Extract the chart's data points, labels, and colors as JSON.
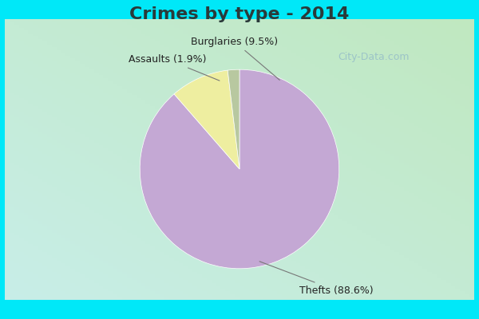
{
  "title": "Crimes by type - 2014",
  "slices": [
    {
      "label": "Thefts",
      "pct": 88.6,
      "color": "#C4A8D4"
    },
    {
      "label": "Burglaries",
      "pct": 9.5,
      "color": "#EEEEA0"
    },
    {
      "label": "Assaults",
      "pct": 1.9,
      "color": "#B8C8A0"
    }
  ],
  "border_color": "#00E8F8",
  "border_thickness": 0.05,
  "bg_gradient_topleft": "#C8EEE8",
  "bg_gradient_bottomright": "#C8E8C8",
  "title_fontsize": 16,
  "label_fontsize": 9,
  "watermark": "City-Data.com",
  "startangle": 90,
  "title_color": "#2A3A3A"
}
